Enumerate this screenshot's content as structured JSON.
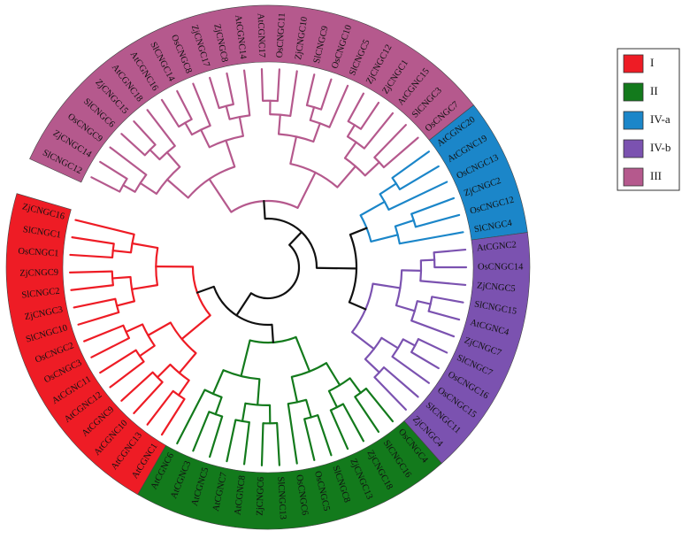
{
  "legend": [
    {
      "label": "I",
      "color": "#ee1c25",
      "leaves": [
        "AtCGNC1",
        "AtCGNC13",
        "AtCGNC10",
        "AtCGNC9",
        "AtCGNC12",
        "AtCGNC11",
        "OsCNGC3",
        "OsCNGC2",
        "SlCNGC10",
        "ZjCNGC3",
        "SlCNGC2",
        "ZjCNGC9",
        "OsCNGC1",
        "SlCNGC1",
        "ZjCNGC16"
      ]
    },
    {
      "label": "II",
      "color": "#137a1c",
      "leaves": [
        "OsCNGC4",
        "SlCNGC16",
        "ZjCNGC18",
        "ZjCNGC13",
        "SlCNGC8",
        "OsCNGC5",
        "OsCNGC6",
        "SlCNGC13",
        "ZjCNGC6",
        "AtCGNC8",
        "AtCGNC7",
        "AtCGNC5",
        "AtCGNC3",
        "AtCGNC6"
      ]
    },
    {
      "label": "IV-a",
      "color": "#1b86c9",
      "leaves": [
        "AtCGNC20",
        "AtCGNC19",
        "OsCNGC13",
        "ZjCNGC2",
        "OsCNGC12",
        "SlCNGC4"
      ]
    },
    {
      "label": "IV-b",
      "color": "#7b52b0",
      "leaves": [
        "AtCGNC2",
        "OsCNGC14",
        "ZjCNGC5",
        "SlCNGC15",
        "AtCGNC4",
        "ZjCNGC7",
        "SlCNGC7",
        "OsCNGC16",
        "OsCNGC15",
        "SlCNGC11",
        "ZjCNGC4"
      ]
    },
    {
      "label": "III",
      "color": "#b5598d",
      "leaves": [
        "SlCNGC12",
        "ZjCNGC14",
        "OsCNGC9",
        "SlCNGC6",
        "ZjCNGC15",
        "AtCGNC18",
        "AtCGNC16",
        "SlCNGC14",
        "OsCNGC8",
        "ZjCNGC17",
        "ZjCNGC8",
        "AtCGNC14",
        "AtCGNC17",
        "OsCNGC11",
        "ZjCNGC10",
        "SlCNGC9",
        "OsCNGC10",
        "SlCNGC5",
        "ZjCNGC12",
        "ZjCNGC1",
        "AtCGNC15",
        "SlCNGC3",
        "OsCNGC7"
      ]
    }
  ]
}
